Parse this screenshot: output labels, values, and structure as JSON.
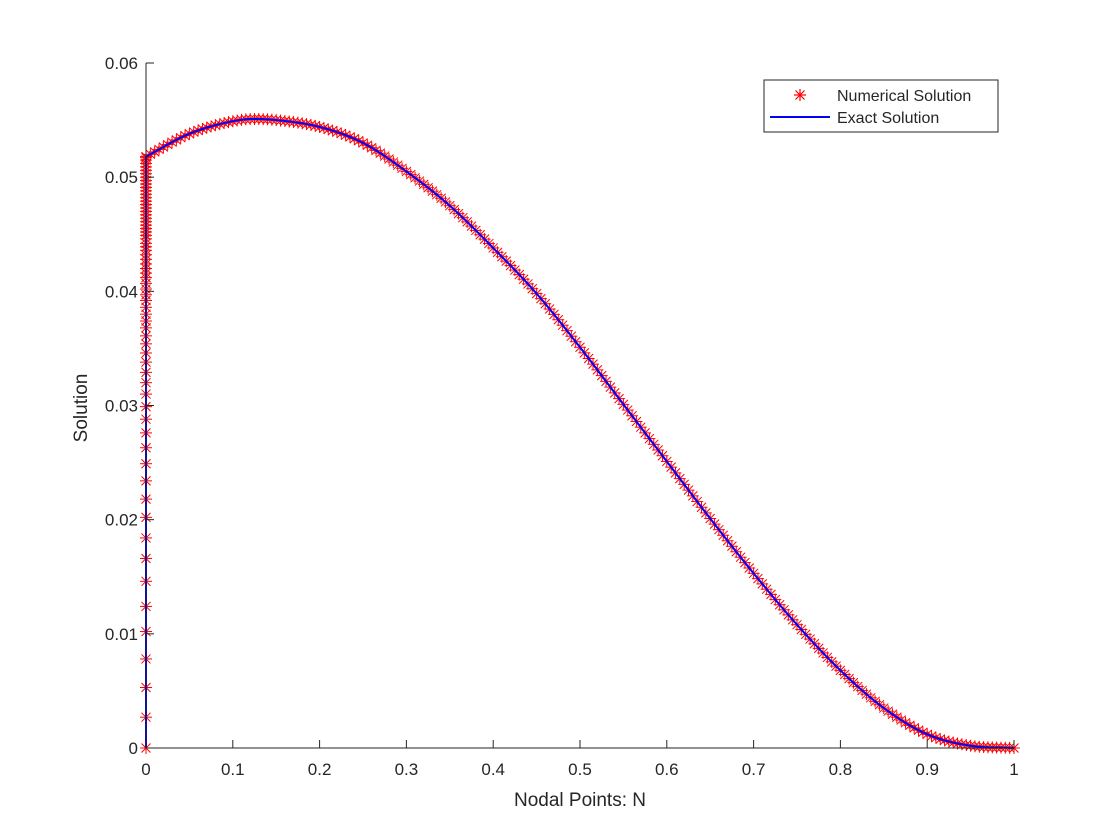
{
  "chart_data": {
    "type": "line",
    "title": "",
    "xlabel": "Nodal Points: N",
    "ylabel": "Solution",
    "xlim": [
      0,
      1
    ],
    "ylim": [
      0,
      0.06
    ],
    "x_ticks": [
      "0",
      "0.1",
      "0.2",
      "0.3",
      "0.4",
      "0.5",
      "0.6",
      "0.7",
      "0.8",
      "0.9",
      "1"
    ],
    "y_ticks": [
      "0",
      "0.01",
      "0.02",
      "0.03",
      "0.04",
      "0.05",
      "0.06"
    ],
    "grid": false,
    "legend_position": "top-right",
    "series": [
      {
        "name": "Numerical Solution",
        "style": "red asterisk markers",
        "color": "#ff0000",
        "boundary_layer_x": 0,
        "boundary_layer_y": [
          0,
          0.0027,
          0.0053,
          0.0078,
          0.0102,
          0.0124,
          0.0146,
          0.0166,
          0.0184,
          0.0202,
          0.0218,
          0.0234,
          0.0249,
          0.0263,
          0.0276,
          0.0288,
          0.0299,
          0.031,
          0.032,
          0.0329,
          0.0338,
          0.0346,
          0.0354,
          0.0361,
          0.0368,
          0.0374,
          0.038,
          0.0386,
          0.0392,
          0.0397,
          0.0402,
          0.0407,
          0.0412,
          0.0416,
          0.042,
          0.0424,
          0.0428,
          0.0432,
          0.0436,
          0.0439,
          0.0442,
          0.0446,
          0.0449,
          0.0452,
          0.0455,
          0.0458,
          0.0461,
          0.0464,
          0.0467,
          0.047,
          0.0473,
          0.0476,
          0.0479,
          0.0482,
          0.0485,
          0.0488,
          0.0491,
          0.0494,
          0.0497,
          0.05,
          0.0503,
          0.0506,
          0.0509,
          0.0512,
          0.0515,
          0.0517
        ],
        "x": [
          0,
          0.05,
          0.1,
          0.125,
          0.15,
          0.2,
          0.25,
          0.3,
          0.35,
          0.4,
          0.45,
          0.5,
          0.55,
          0.6,
          0.65,
          0.7,
          0.75,
          0.8,
          0.85,
          0.9,
          0.95,
          1.0
        ],
        "y": [
          0.0518,
          0.0538,
          0.0549,
          0.0551,
          0.055,
          0.0544,
          0.053,
          0.0505,
          0.0475,
          0.0438,
          0.0398,
          0.0351,
          0.0301,
          0.0251,
          0.0201,
          0.0153,
          0.0108,
          0.0068,
          0.0035,
          0.0012,
          0.0002,
          0.0
        ]
      },
      {
        "name": "Exact Solution",
        "style": "blue solid line",
        "color": "#0000ff",
        "x": [
          0,
          0,
          0.05,
          0.1,
          0.125,
          0.15,
          0.2,
          0.25,
          0.3,
          0.35,
          0.4,
          0.45,
          0.5,
          0.55,
          0.6,
          0.65,
          0.7,
          0.75,
          0.8,
          0.85,
          0.9,
          0.95,
          1.0
        ],
        "y": [
          0.0,
          0.0518,
          0.0538,
          0.0549,
          0.0551,
          0.055,
          0.0544,
          0.053,
          0.0505,
          0.0475,
          0.0438,
          0.0398,
          0.0351,
          0.0301,
          0.0251,
          0.0201,
          0.0153,
          0.0108,
          0.0068,
          0.0035,
          0.0012,
          0.0002,
          0.0
        ]
      }
    ]
  }
}
